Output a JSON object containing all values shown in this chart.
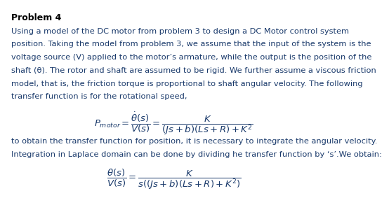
{
  "title": "Problem 4",
  "body_text": [
    "Using a model of the DC motor from problem 3 to design a DC Motor control system",
    "position. Taking the model from problem 3, we assume that the input of the system is the",
    "voltage source (V) applied to the motor’s armature, while the output is the position of the",
    "shaft (θ). The rotor and shaft are assumed to be rigid. We further assume a viscous friction",
    "model, that is, the friction torque is proportional to shaft angular velocity. The following",
    "transfer function is for the rotational speed,"
  ],
  "formula1": "$P_{motor} = \\dfrac{\\dot{\\theta}(s)}{V(s)} = \\dfrac{K}{(Js + b)(Ls + R) + K^2}$",
  "body_text2": [
    "to obtain the transfer function for position, it is necessary to integrate the angular velocity.",
    "Integration in Laplace domain can be done by dividing he transfer function by ‘s’.We obtain:"
  ],
  "formula2": "$\\dfrac{\\theta(s)}{V(s)} = \\dfrac{K}{s((Js + b)(Ls + R) + K^2)}$",
  "bg_color": "#ffffff",
  "text_color": "#1a3a6b",
  "title_color": "#000000",
  "font_size_body": 8.2,
  "font_size_title": 9.0,
  "font_size_formula": 9.5
}
